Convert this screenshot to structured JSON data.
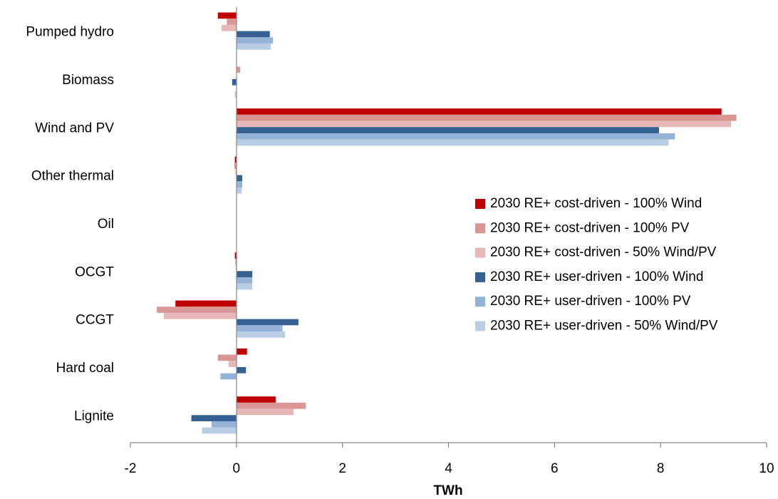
{
  "chart_data": {
    "type": "bar",
    "orientation": "horizontal",
    "categories": [
      "Pumped hydro",
      "Biomass",
      "Wind and PV",
      "Other thermal",
      "Oil",
      "OCGT",
      "CCGT",
      "Hard coal",
      "Lignite"
    ],
    "xlabel": "TWh",
    "xlim": [
      -2,
      10
    ],
    "xticks": [
      "-2",
      "0",
      "2",
      "4",
      "6",
      "8",
      "10"
    ],
    "grid": false,
    "legend_position": "right",
    "series": [
      {
        "name": "2030 RE+ cost-driven - 100% Wind",
        "color": "#c00000",
        "values": [
          -0.35,
          0.0,
          9.15,
          -0.03,
          0.0,
          -0.03,
          -1.15,
          0.2,
          0.74
        ]
      },
      {
        "name": "2030 RE+ cost-driven - 100% PV",
        "color": "#d99694",
        "values": [
          -0.18,
          0.07,
          9.43,
          -0.04,
          0.0,
          -0.02,
          -1.5,
          -0.35,
          1.31
        ]
      },
      {
        "name": "2030 RE+ cost-driven - 50% Wind/PV",
        "color": "#e6b9b8",
        "values": [
          -0.28,
          0.0,
          9.33,
          -0.02,
          0.0,
          -0.01,
          -1.37,
          -0.15,
          1.08
        ]
      },
      {
        "name": "2030 RE+ user-driven - 100% Wind",
        "color": "#376092",
        "values": [
          0.63,
          -0.08,
          7.97,
          0.11,
          0.0,
          0.3,
          1.17,
          0.18,
          -0.85
        ]
      },
      {
        "name": "2030 RE+ user-driven - 100% PV",
        "color": "#95b3d7",
        "values": [
          0.69,
          0.0,
          8.27,
          0.11,
          0.0,
          0.3,
          0.87,
          -0.3,
          -0.47
        ]
      },
      {
        "name": "2030 RE+ user-driven - 50% Wind/PV",
        "color": "#b9cde5",
        "values": [
          0.65,
          -0.03,
          8.15,
          0.1,
          0.0,
          0.3,
          0.92,
          0.0,
          -0.65
        ]
      }
    ]
  }
}
